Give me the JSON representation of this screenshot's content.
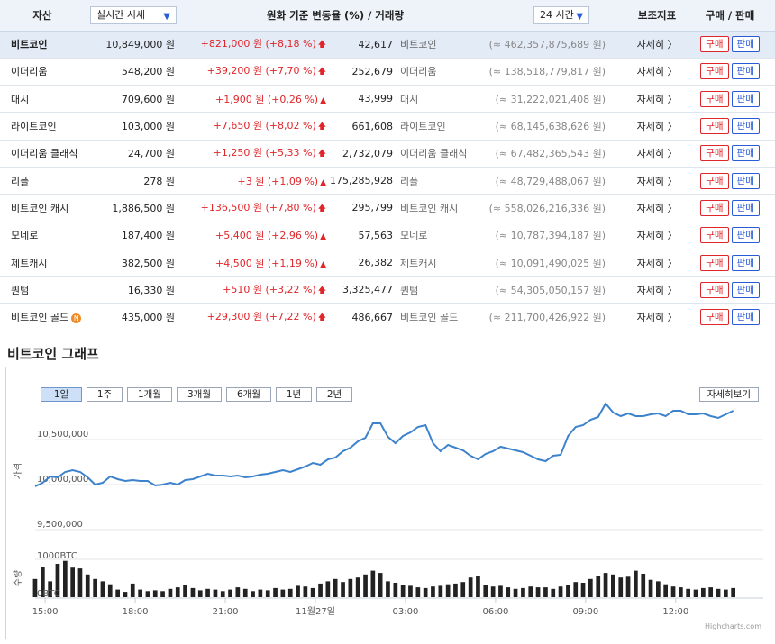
{
  "header": {
    "asset": "자산",
    "price_mode": "실시간 시세",
    "change_header": "원화 기준 변동율 (%)  /  거래량",
    "period": "24 시간",
    "indicator": "보조지표",
    "trade": "구매 / 판매"
  },
  "rows": [
    {
      "name": "비트코인",
      "price": "10,849,000 원",
      "change": "+821,000 원 (+8,18 %)",
      "icon": "double-up-arrow",
      "volume": "42,617",
      "coin": "비트코인",
      "krw": "(≈ 462,357,875,689 원)",
      "detail": "자세히 〉",
      "buy": "구매",
      "sell": "판매"
    },
    {
      "name": "이더리움",
      "price": "548,200 원",
      "change": "+39,200 원 (+7,70 %)",
      "icon": "double-up-arrow",
      "volume": "252,679",
      "coin": "이더리움",
      "krw": "(≈ 138,518,779,817 원)",
      "detail": "자세히 〉",
      "buy": "구매",
      "sell": "판매"
    },
    {
      "name": "대시",
      "price": "709,600 원",
      "change": "+1,900 원 (+0,26 %)",
      "icon": "up-triangle",
      "volume": "43,999",
      "coin": "대시",
      "krw": "(≈ 31,222,021,408 원)",
      "detail": "자세히 〉",
      "buy": "구매",
      "sell": "판매"
    },
    {
      "name": "라이트코인",
      "price": "103,000 원",
      "change": "+7,650 원 (+8,02 %)",
      "icon": "double-up-arrow",
      "volume": "661,608",
      "coin": "라이트코인",
      "krw": "(≈ 68,145,638,626 원)",
      "detail": "자세히 〉",
      "buy": "구매",
      "sell": "판매"
    },
    {
      "name": "이더리움 클래식",
      "price": "24,700 원",
      "change": "+1,250 원 (+5,33 %)",
      "icon": "double-up-arrow",
      "volume": "2,732,079",
      "coin": "이더리움 클래식",
      "krw": "(≈ 67,482,365,543 원)",
      "detail": "자세히 〉",
      "buy": "구매",
      "sell": "판매"
    },
    {
      "name": "리플",
      "price": "278 원",
      "change": "+3 원 (+1,09 %)",
      "icon": "up-triangle",
      "volume": "175,285,928",
      "coin": "리플",
      "krw": "(≈ 48,729,488,067 원)",
      "detail": "자세히 〉",
      "buy": "구매",
      "sell": "판매"
    },
    {
      "name": "비트코인 캐시",
      "price": "1,886,500 원",
      "change": "+136,500 원 (+7,80 %)",
      "icon": "double-up-arrow",
      "volume": "295,799",
      "coin": "비트코인 캐시",
      "krw": "(≈ 558,026,216,336 원)",
      "detail": "자세히 〉",
      "buy": "구매",
      "sell": "판매"
    },
    {
      "name": "모네로",
      "price": "187,400 원",
      "change": "+5,400 원 (+2,96 %)",
      "icon": "up-triangle",
      "volume": "57,563",
      "coin": "모네로",
      "krw": "(≈ 10,787,394,187 원)",
      "detail": "자세히 〉",
      "buy": "구매",
      "sell": "판매"
    },
    {
      "name": "제트캐시",
      "price": "382,500 원",
      "change": "+4,500 원 (+1,19 %)",
      "icon": "up-triangle",
      "volume": "26,382",
      "coin": "제트캐시",
      "krw": "(≈ 10,091,490,025 원)",
      "detail": "자세히 〉",
      "buy": "구매",
      "sell": "판매"
    },
    {
      "name": "퀀텀",
      "price": "16,330 원",
      "change": "+510 원 (+3,22 %)",
      "icon": "double-up-arrow",
      "volume": "3,325,477",
      "coin": "퀀텀",
      "krw": "(≈ 54,305,050,157 원)",
      "detail": "자세히 〉",
      "buy": "구매",
      "sell": "판매"
    },
    {
      "name": "비트코인 골드",
      "price": "435,000 원",
      "change": "+29,300 원 (+7,22 %)",
      "icon": "double-up-arrow",
      "volume": "486,667",
      "coin": "비트코인 골드",
      "krw": "(≈ 211,700,426,922 원)",
      "detail": "자세히 〉",
      "buy": "구매",
      "sell": "판매",
      "badge": "N"
    }
  ],
  "colors": {
    "up": "#e0262a",
    "line": "#3d82cc",
    "volume": "#222222",
    "buy": "#e0262a",
    "sell": "#2a5bd7"
  },
  "chart_section": {
    "title": "비트코인 그래프",
    "ranges": [
      "1일",
      "1주",
      "1개월",
      "3개월",
      "6개월",
      "1년",
      "2년"
    ],
    "active_range": "1일",
    "detail_button": "자세히보기",
    "credit": "Highcharts.com"
  },
  "chart_data": [
    {
      "type": "line",
      "ylabel": "가격",
      "yticks": [
        "10,500,000",
        "10,000,000",
        "9,500,000"
      ],
      "ylim": [
        9400000,
        10900000
      ],
      "xticks": [
        "15:00",
        "18:00",
        "21:00",
        "11월27일",
        "03:00",
        "06:00",
        "09:00",
        "12:00"
      ],
      "xlim": [
        "2017-11-26 14:40",
        "2017-11-27 14:55"
      ],
      "x_start": "2017-11-26 14:40",
      "x_step_minutes": 15,
      "series": [
        {
          "values": [
            9980000,
            10020000,
            10090000,
            10080000,
            10140000,
            10160000,
            10140000,
            10080000,
            10000000,
            10020000,
            10090000,
            10060000,
            10040000,
            10050000,
            10040000,
            10040000,
            9990000,
            10000000,
            10020000,
            10000000,
            10050000,
            10060000,
            10090000,
            10120000,
            10100000,
            10100000,
            10090000,
            10100000,
            10080000,
            10090000,
            10110000,
            10120000,
            10140000,
            10160000,
            10140000,
            10170000,
            10200000,
            10240000,
            10220000,
            10280000,
            10300000,
            10370000,
            10410000,
            10480000,
            10520000,
            10680000,
            10680000,
            10530000,
            10460000,
            10540000,
            10580000,
            10640000,
            10660000,
            10460000,
            10370000,
            10440000,
            10410000,
            10380000,
            10320000,
            10280000,
            10340000,
            10370000,
            10420000,
            10400000,
            10380000,
            10360000,
            10320000,
            10280000,
            10260000,
            10320000,
            10330000,
            10540000,
            10640000,
            10660000,
            10720000,
            10750000,
            10900000,
            10800000,
            10760000,
            10790000,
            10760000,
            10760000,
            10780000,
            10790000,
            10760000,
            10820000,
            10820000,
            10780000,
            10780000,
            10790000,
            10760000,
            10740000,
            10780000,
            10820000
          ]
        }
      ]
    },
    {
      "type": "bar",
      "ylabel": "수량",
      "yticks": [
        "1000BTC",
        "0BTC"
      ],
      "ylim": [
        0,
        1000
      ],
      "x_start": "2017-11-26 14:40",
      "x_step_minutes": 15,
      "series": [
        {
          "values": [
            480,
            800,
            420,
            880,
            960,
            780,
            760,
            600,
            480,
            420,
            340,
            200,
            140,
            360,
            200,
            160,
            180,
            160,
            220,
            260,
            320,
            240,
            180,
            220,
            200,
            160,
            200,
            260,
            220,
            160,
            200,
            180,
            240,
            200,
            220,
            300,
            280,
            240,
            360,
            420,
            480,
            400,
            480,
            520,
            600,
            700,
            640,
            420,
            380,
            320,
            300,
            260,
            240,
            280,
            300,
            340,
            360,
            400,
            520,
            560,
            320,
            280,
            300,
            260,
            220,
            240,
            280,
            260,
            260,
            220,
            280,
            320,
            400,
            380,
            480,
            560,
            640,
            600,
            520,
            540,
            700,
            620,
            460,
            420,
            340,
            280,
            260,
            220,
            200,
            240,
            260,
            220,
            200,
            240
          ]
        }
      ]
    }
  ]
}
